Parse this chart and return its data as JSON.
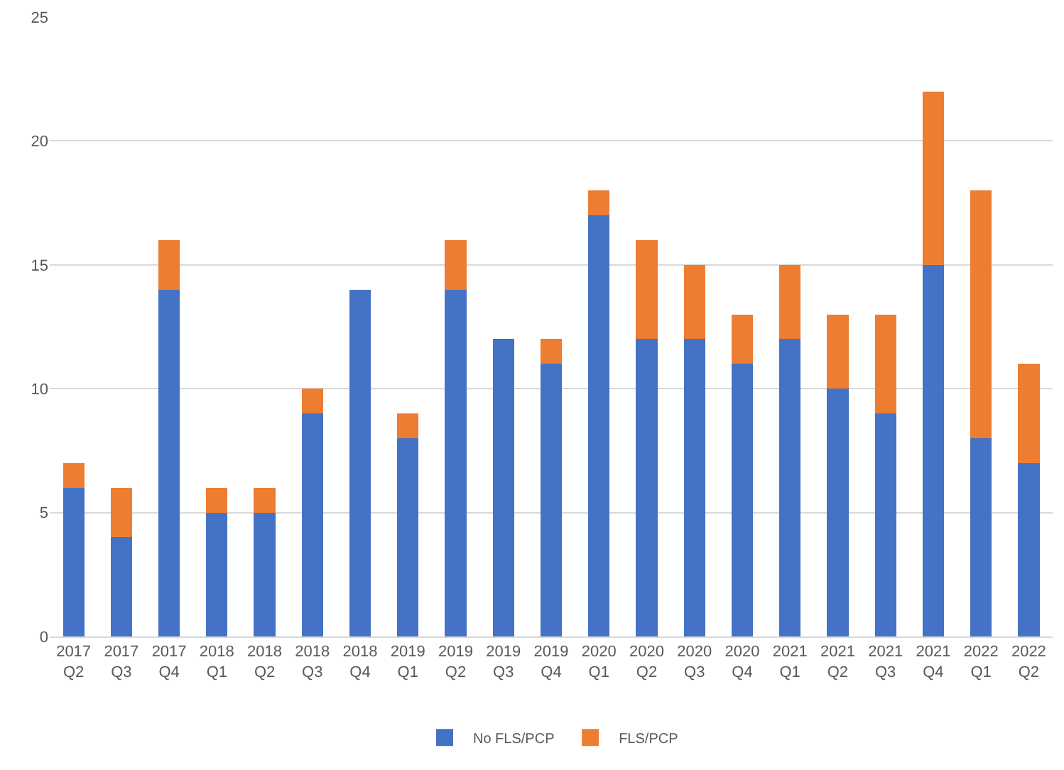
{
  "chart_data": {
    "type": "bar",
    "stacked": true,
    "categories": [
      "2017 Q2",
      "2017 Q3",
      "2017 Q4",
      "2018 Q1",
      "2018 Q2",
      "2018 Q3",
      "2018 Q4",
      "2019 Q1",
      "2019 Q2",
      "2019 Q3",
      "2019 Q4",
      "2020 Q1",
      "2020 Q2",
      "2020 Q3",
      "2020 Q4",
      "2021 Q1",
      "2021 Q2",
      "2021 Q3",
      "2021 Q4",
      "2022 Q1",
      "2022 Q2"
    ],
    "series": [
      {
        "name": "No FLS/PCP",
        "color": "#4472c4",
        "values": [
          6,
          4,
          14,
          5,
          5,
          9,
          14,
          8,
          14,
          12,
          11,
          17,
          12,
          12,
          11,
          12,
          10,
          9,
          15,
          8,
          7
        ]
      },
      {
        "name": "FLS/PCP",
        "color": "#ed7d31",
        "values": [
          1,
          2,
          2,
          1,
          1,
          1,
          0,
          1,
          2,
          0,
          1,
          1,
          4,
          3,
          2,
          3,
          3,
          4,
          7,
          10,
          4
        ]
      }
    ],
    "ylim": [
      0,
      25
    ],
    "yticks": [
      0,
      5,
      10,
      15,
      20,
      25
    ],
    "grid": "y",
    "legend": "bottom"
  }
}
